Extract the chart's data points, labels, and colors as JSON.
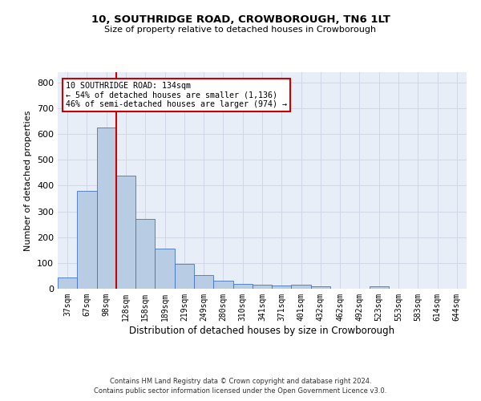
{
  "title": "10, SOUTHRIDGE ROAD, CROWBOROUGH, TN6 1LT",
  "subtitle": "Size of property relative to detached houses in Crowborough",
  "xlabel": "Distribution of detached houses by size in Crowborough",
  "ylabel": "Number of detached properties",
  "categories": [
    "37sqm",
    "67sqm",
    "98sqm",
    "128sqm",
    "158sqm",
    "189sqm",
    "219sqm",
    "249sqm",
    "280sqm",
    "310sqm",
    "341sqm",
    "371sqm",
    "401sqm",
    "432sqm",
    "462sqm",
    "492sqm",
    "523sqm",
    "553sqm",
    "583sqm",
    "614sqm",
    "644sqm"
  ],
  "values": [
    45,
    380,
    625,
    440,
    270,
    155,
    95,
    52,
    30,
    18,
    15,
    12,
    15,
    8,
    0,
    0,
    8,
    0,
    0,
    0,
    0
  ],
  "bar_color": "#b8cce4",
  "bar_edge_color": "#4472c4",
  "grid_color": "#d0d8e8",
  "bg_color": "#e8eef8",
  "vline_x_index": 3,
  "vline_color": "#cc0000",
  "annotation_line1": "10 SOUTHRIDGE ROAD: 134sqm",
  "annotation_line2": "← 54% of detached houses are smaller (1,136)",
  "annotation_line3": "46% of semi-detached houses are larger (974) →",
  "annotation_box_color": "#ffffff",
  "annotation_box_edge": "#cc0000",
  "footer": "Contains HM Land Registry data © Crown copyright and database right 2024.\nContains public sector information licensed under the Open Government Licence v3.0.",
  "ylim": [
    0,
    840
  ],
  "yticks": [
    0,
    100,
    200,
    300,
    400,
    500,
    600,
    700,
    800
  ]
}
